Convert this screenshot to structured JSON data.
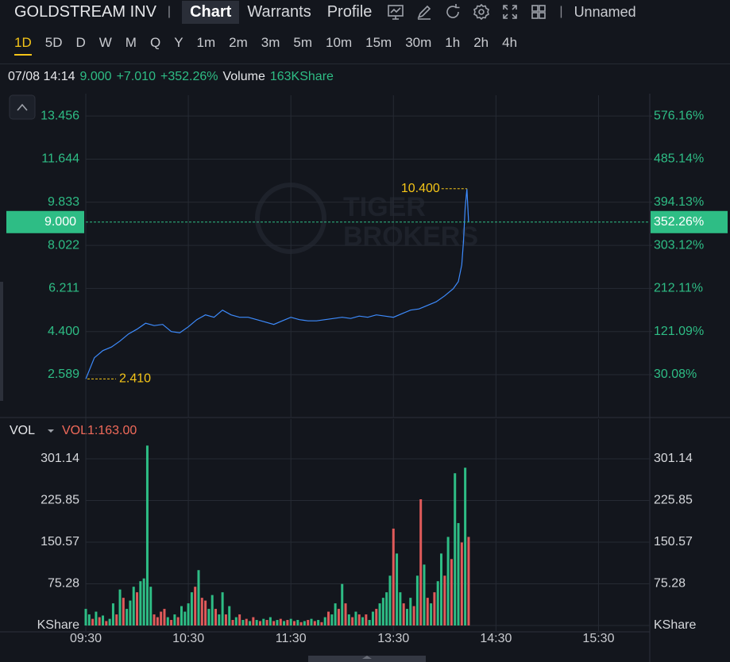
{
  "header": {
    "symbol": "GOLDSTREAM INV",
    "tabs": [
      "Chart",
      "Warrants",
      "Profile"
    ],
    "layout_name": "Unnamed"
  },
  "periods": [
    "1D",
    "5D",
    "D",
    "W",
    "M",
    "Q",
    "Y",
    "1m",
    "2m",
    "3m",
    "5m",
    "10m",
    "15m",
    "30m",
    "1h",
    "2h",
    "4h"
  ],
  "quote": {
    "time": "07/08 14:14",
    "price": "9.000",
    "change": "+7.010",
    "change_pct": "+352.26%",
    "volume_label": "Volume",
    "volume": "163KShare"
  },
  "chart_data": [
    {
      "type": "line",
      "watermark": [
        "TIGER",
        "BROKERS"
      ],
      "x": [
        0,
        5,
        10,
        15,
        20,
        25,
        30,
        35,
        40,
        45,
        50,
        55,
        60,
        65,
        70,
        75,
        80,
        85,
        90,
        95,
        100,
        105,
        110,
        115,
        120,
        125,
        130,
        135,
        140,
        145,
        150,
        155,
        160,
        165,
        170,
        175,
        180,
        185,
        190,
        195,
        200,
        205,
        210,
        215,
        218,
        220,
        221,
        222,
        223,
        224
      ],
      "series": [
        {
          "color": "#3d8bfd",
          "values": [
            2.41,
            3.3,
            3.6,
            3.75,
            4.0,
            4.3,
            4.5,
            4.75,
            4.65,
            4.7,
            4.4,
            4.35,
            4.6,
            4.9,
            5.1,
            5.0,
            5.3,
            5.1,
            5.0,
            5.0,
            4.9,
            4.8,
            4.7,
            4.85,
            5.0,
            4.9,
            4.85,
            4.85,
            4.9,
            4.95,
            5.0,
            4.95,
            5.05,
            5.0,
            5.1,
            5.05,
            5.0,
            5.15,
            5.3,
            5.35,
            5.5,
            5.65,
            5.9,
            6.2,
            6.5,
            7.2,
            8.2,
            9.6,
            10.4,
            9.0
          ]
        }
      ],
      "xlim": [
        0,
        330
      ],
      "ylim": [
        0.821,
        14.329
      ],
      "yticks": [
        2.589,
        {
          "value": 4.4,
          "label": "4.400"
        },
        6.211,
        8.022,
        9.833,
        11.644,
        13.456
      ],
      "y2lim": [
        -58.75,
        620.08
      ],
      "y2ticks": [
        {
          "value": 30.08,
          "label": "30.08%"
        },
        {
          "value": 121.09,
          "label": "121.09%"
        },
        {
          "value": 212.11,
          "label": "212.11%"
        },
        {
          "value": 303.12,
          "label": "303.12%"
        },
        {
          "value": 394.13,
          "label": "394.13%"
        },
        {
          "value": 485.14,
          "label": "485.14%"
        },
        {
          "value": 576.16,
          "label": "576.16%"
        }
      ],
      "current": {
        "value": 9.0,
        "label": "9.000",
        "y2": {
          "value": 352.26,
          "label": "352.26%"
        },
        "color": "#2ebd85"
      },
      "high": {
        "x": 223,
        "value": 10.4,
        "label": "10.400"
      },
      "low": {
        "x": 0,
        "value": 2.41,
        "label": "2.410"
      },
      "grid": true
    },
    {
      "type": "bar",
      "title": "VOL",
      "indicator": "VOL1:163.00",
      "series": [
        {
          "color": "#2ebd85",
          "x": [
            0,
            2,
            6,
            10,
            14,
            16,
            20,
            24,
            26,
            28,
            32,
            34,
            36,
            38,
            48,
            52,
            56,
            58,
            60,
            62,
            66,
            72,
            74,
            78,
            80,
            84,
            88,
            92,
            96,
            100,
            104,
            108,
            112,
            116,
            120,
            124,
            128,
            132,
            136,
            140,
            144,
            146,
            150,
            154,
            158,
            162,
            166,
            168,
            172,
            174,
            176,
            178,
            182,
            184,
            188,
            190,
            194,
            198,
            202,
            206,
            208,
            212,
            216,
            218,
            222
          ],
          "values": [
            30,
            20,
            25,
            18,
            12,
            40,
            65,
            30,
            45,
            70,
            80,
            85,
            325,
            70,
            15,
            20,
            35,
            25,
            40,
            60,
            100,
            30,
            55,
            20,
            60,
            35,
            15,
            10,
            8,
            10,
            12,
            15,
            10,
            8,
            12,
            10,
            8,
            12,
            10,
            15,
            20,
            40,
            75,
            20,
            25,
            15,
            10,
            25,
            40,
            50,
            60,
            90,
            130,
            60,
            30,
            50,
            90,
            110,
            40,
            80,
            130,
            160,
            275,
            185,
            285
          ]
        },
        {
          "color": "#e05a5a",
          "x": [
            4,
            8,
            12,
            18,
            22,
            30,
            40,
            42,
            44,
            46,
            50,
            54,
            64,
            68,
            70,
            76,
            82,
            86,
            90,
            94,
            98,
            102,
            106,
            110,
            114,
            118,
            122,
            126,
            130,
            134,
            138,
            142,
            148,
            152,
            156,
            160,
            164,
            170,
            180,
            186,
            192,
            196,
            200,
            204,
            210,
            214,
            220,
            224
          ],
          "values": [
            12,
            15,
            8,
            20,
            50,
            60,
            20,
            15,
            25,
            30,
            10,
            15,
            70,
            50,
            45,
            30,
            20,
            10,
            20,
            12,
            15,
            8,
            10,
            8,
            12,
            10,
            8,
            6,
            10,
            8,
            6,
            25,
            30,
            40,
            15,
            20,
            20,
            30,
            175,
            40,
            35,
            228,
            50,
            60,
            90,
            120,
            150,
            160
          ]
        }
      ],
      "xlim": [
        0,
        330
      ],
      "xticks": [
        {
          "value": 0,
          "label": "09:30"
        },
        {
          "value": 60,
          "label": "10:30"
        },
        {
          "value": 120,
          "label": "11:30"
        },
        {
          "value": 180,
          "label": "13:30"
        },
        {
          "value": 240,
          "label": "14:30"
        },
        {
          "value": 300,
          "label": "15:30"
        }
      ],
      "ylim": [
        0,
        372.8
      ],
      "yticks": [
        {
          "value": 0,
          "label": "KShare"
        },
        75.28,
        150.57,
        225.85,
        301.14
      ],
      "grid": true
    }
  ]
}
